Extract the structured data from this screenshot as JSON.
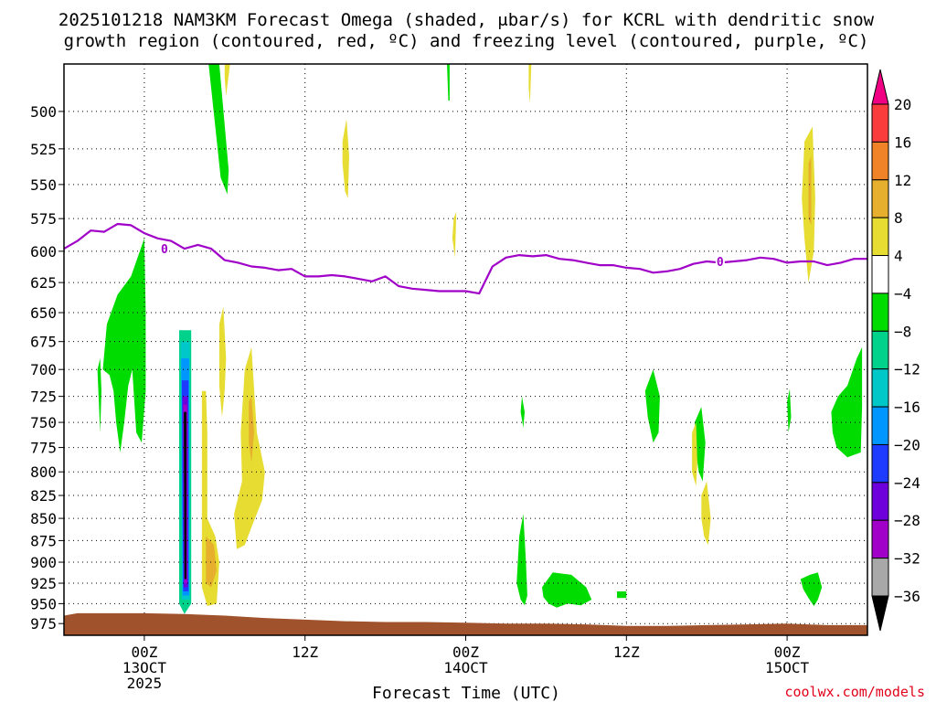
{
  "chart_data": {
    "type": "heatmap",
    "title_lines": [
      "2025101218 NAM3KM Forecast Omega (shaded, μbar/s) for KCRL with dendritic snow",
      "growth region (contoured, red, ºC) and freezing level (contoured, purple, ºC)"
    ],
    "xlabel": "Forecast Time (UTC)",
    "credit": "coolwx.com/models",
    "x_unit": "hours from 2025-10-12 18Z",
    "xlim": [
      0,
      60
    ],
    "x_ticks": [
      {
        "x": 6,
        "lines": [
          "00Z",
          "13OCT",
          "2025"
        ]
      },
      {
        "x": 18,
        "lines": [
          "12Z"
        ]
      },
      {
        "x": 30,
        "lines": [
          "00Z",
          "14OCT"
        ]
      },
      {
        "x": 42,
        "lines": [
          "12Z"
        ]
      },
      {
        "x": 54,
        "lines": [
          "00Z",
          "15OCT"
        ]
      }
    ],
    "y_ticks": [
      500,
      525,
      550,
      575,
      600,
      625,
      650,
      675,
      700,
      725,
      750,
      775,
      800,
      825,
      850,
      875,
      900,
      925,
      950,
      975
    ],
    "ylim": [
      470,
      990
    ],
    "y_scale": "log",
    "grid": true,
    "colorbar": {
      "levels": [
        -36,
        -32,
        -28,
        -24,
        -20,
        -16,
        -12,
        -8,
        -4,
        4,
        8,
        12,
        16,
        20
      ],
      "colors": [
        "#000000",
        "#a8a8a8",
        "#a000c8",
        "#6e00dc",
        "#1e3cff",
        "#0096ff",
        "#00c8c8",
        "#00d28c",
        "#00dc00",
        "#ffffff",
        "#e6dc32",
        "#e6af2d",
        "#f08228",
        "#fa3c3c",
        "#f00082"
      ]
    },
    "freezing_level": {
      "label": "0",
      "color": "#a000c8",
      "x": [
        0,
        1,
        2,
        3,
        4,
        5,
        6,
        7,
        8,
        9,
        10,
        11,
        12,
        13,
        14,
        15,
        16,
        17,
        18,
        19,
        20,
        21,
        22,
        23,
        24,
        25,
        26,
        27,
        28,
        29,
        30,
        31,
        32,
        33,
        34,
        35,
        36,
        37,
        38,
        39,
        40,
        41,
        42,
        43,
        44,
        45,
        46,
        47,
        48,
        49,
        50,
        51,
        52,
        53,
        54,
        55,
        56,
        57,
        58,
        59,
        60
      ],
      "y": [
        598,
        592,
        584,
        585,
        579,
        580,
        586,
        590,
        592,
        598,
        595,
        598,
        607,
        609,
        612,
        613,
        615,
        614,
        620,
        620,
        619,
        620,
        622,
        624,
        620,
        628,
        630,
        631,
        632,
        632,
        632,
        634,
        612,
        605,
        603,
        604,
        603,
        606,
        607,
        609,
        611,
        611,
        613,
        614,
        617,
        616,
        614,
        610,
        608,
        609,
        608,
        607,
        605,
        606,
        609,
        608,
        608,
        611,
        609,
        606,
        606
      ]
    },
    "omega_regions": [
      {
        "level": -4,
        "pts": [
          [
            2.9,
            700
          ],
          [
            3.2,
            660
          ],
          [
            4.0,
            635
          ],
          [
            5.0,
            620
          ],
          [
            6.0,
            590
          ],
          [
            6.1,
            650
          ],
          [
            6.1,
            720
          ],
          [
            5.8,
            770
          ],
          [
            5.4,
            760
          ],
          [
            5.1,
            700
          ],
          [
            4.8,
            715
          ],
          [
            4.5,
            750
          ],
          [
            4.2,
            780
          ],
          [
            3.9,
            750
          ],
          [
            3.7,
            720
          ],
          [
            3.4,
            705
          ]
        ]
      },
      {
        "level": -4,
        "pts": [
          [
            2.5,
            700
          ],
          [
            2.7,
            690
          ],
          [
            2.8,
            720
          ],
          [
            2.7,
            760
          ],
          [
            2.6,
            730
          ]
        ]
      },
      {
        "level": -4,
        "pts": [
          [
            10.8,
            470
          ],
          [
            11.6,
            470
          ],
          [
            12.3,
            540
          ],
          [
            12.2,
            557
          ],
          [
            11.7,
            545
          ],
          [
            11.3,
            510
          ]
        ]
      },
      {
        "level": -4,
        "pts": [
          [
            28.6,
            470
          ],
          [
            28.8,
            470
          ],
          [
            28.8,
            493
          ],
          [
            28.7,
            493
          ]
        ]
      },
      {
        "level": -4,
        "pts": [
          [
            34.2,
            725
          ],
          [
            34.4,
            740
          ],
          [
            34.3,
            755
          ],
          [
            34.1,
            740
          ]
        ]
      },
      {
        "level": -4,
        "pts": [
          [
            34.0,
            870
          ],
          [
            34.3,
            845
          ],
          [
            34.5,
            900
          ],
          [
            34.6,
            940
          ],
          [
            34.4,
            952
          ],
          [
            34.1,
            945
          ],
          [
            33.8,
            925
          ]
        ]
      },
      {
        "level": -4,
        "pts": [
          [
            35.7,
            930
          ],
          [
            36.5,
            912
          ],
          [
            37.9,
            915
          ],
          [
            39.0,
            930
          ],
          [
            39.4,
            945
          ],
          [
            38.6,
            952
          ],
          [
            37.6,
            950
          ],
          [
            36.8,
            955
          ],
          [
            36.2,
            950
          ],
          [
            35.8,
            942
          ]
        ]
      },
      {
        "level": -4,
        "pts": [
          [
            41.3,
            935
          ],
          [
            42.0,
            935
          ],
          [
            42.0,
            943
          ],
          [
            41.3,
            943
          ]
        ]
      },
      {
        "level": -4,
        "pts": [
          [
            43.4,
            720
          ],
          [
            44.0,
            700
          ],
          [
            44.5,
            725
          ],
          [
            44.4,
            760
          ],
          [
            44.0,
            770
          ],
          [
            43.6,
            745
          ]
        ]
      },
      {
        "level": -4,
        "pts": [
          [
            47.1,
            750
          ],
          [
            47.6,
            735
          ],
          [
            47.9,
            770
          ],
          [
            47.7,
            810
          ],
          [
            47.4,
            800
          ],
          [
            47.2,
            780
          ]
        ]
      },
      {
        "level": -4,
        "pts": [
          [
            54.0,
            730
          ],
          [
            54.2,
            718
          ],
          [
            54.3,
            745
          ],
          [
            54.1,
            760
          ]
        ]
      },
      {
        "level": -4,
        "pts": [
          [
            57.3,
            740
          ],
          [
            57.8,
            725
          ],
          [
            58.5,
            715
          ],
          [
            59.2,
            690
          ],
          [
            59.6,
            680
          ],
          [
            59.6,
            735
          ],
          [
            59.5,
            780
          ],
          [
            58.5,
            785
          ],
          [
            57.7,
            775
          ],
          [
            57.4,
            760
          ]
        ]
      },
      {
        "level": -4,
        "pts": [
          [
            55.0,
            920
          ],
          [
            55.7,
            915
          ],
          [
            56.3,
            912
          ],
          [
            56.6,
            930
          ],
          [
            56.3,
            945
          ],
          [
            56.0,
            953
          ],
          [
            55.6,
            943
          ],
          [
            55.2,
            932
          ]
        ]
      },
      {
        "level": 4,
        "pts": [
          [
            12.0,
            470
          ],
          [
            12.4,
            470
          ],
          [
            12.1,
            490
          ],
          [
            12.0,
            478
          ]
        ]
      },
      {
        "level": 4,
        "pts": [
          [
            20.8,
            520
          ],
          [
            21.1,
            505
          ],
          [
            21.3,
            530
          ],
          [
            21.2,
            560
          ],
          [
            21.0,
            555
          ],
          [
            20.8,
            535
          ]
        ]
      },
      {
        "level": 4,
        "pts": [
          [
            29.1,
            575
          ],
          [
            29.3,
            570
          ],
          [
            29.2,
            605
          ],
          [
            29.0,
            590
          ]
        ]
      },
      {
        "level": 4,
        "pts": [
          [
            34.7,
            470
          ],
          [
            34.9,
            470
          ],
          [
            34.8,
            495
          ],
          [
            34.7,
            485
          ]
        ]
      },
      {
        "level": 4,
        "pts": [
          [
            11.6,
            660
          ],
          [
            11.9,
            645
          ],
          [
            12.1,
            690
          ],
          [
            12.0,
            720
          ],
          [
            11.8,
            745
          ],
          [
            11.6,
            715
          ]
        ]
      },
      {
        "level": 4,
        "pts": [
          [
            10.3,
            720
          ],
          [
            10.6,
            720
          ],
          [
            10.7,
            760
          ],
          [
            10.7,
            850
          ],
          [
            11.3,
            870
          ],
          [
            11.6,
            900
          ],
          [
            11.4,
            950
          ],
          [
            10.7,
            953
          ],
          [
            10.3,
            930
          ]
        ]
      },
      {
        "level": 4,
        "pts": [
          [
            13.5,
            700
          ],
          [
            14.0,
            680
          ],
          [
            14.4,
            760
          ],
          [
            15.0,
            800
          ],
          [
            14.8,
            830
          ],
          [
            14.0,
            860
          ],
          [
            13.5,
            880
          ],
          [
            12.9,
            885
          ],
          [
            12.7,
            845
          ],
          [
            13.3,
            810
          ],
          [
            13.2,
            760
          ]
        ]
      },
      {
        "level": 4,
        "pts": [
          [
            46.9,
            760
          ],
          [
            47.2,
            750
          ],
          [
            47.3,
            790
          ],
          [
            47.2,
            815
          ],
          [
            46.9,
            800
          ]
        ]
      },
      {
        "level": 4,
        "pts": [
          [
            47.6,
            825
          ],
          [
            48.0,
            810
          ],
          [
            48.3,
            850
          ],
          [
            48.1,
            880
          ],
          [
            47.8,
            870
          ],
          [
            47.6,
            850
          ]
        ]
      },
      {
        "level": 4,
        "pts": [
          [
            55.3,
            520
          ],
          [
            55.9,
            510
          ],
          [
            56.1,
            560
          ],
          [
            56.0,
            600
          ],
          [
            55.6,
            625
          ],
          [
            55.3,
            590
          ],
          [
            55.1,
            560
          ]
        ]
      },
      {
        "level": 8,
        "pts": [
          [
            13.8,
            730
          ],
          [
            14.0,
            725
          ],
          [
            14.2,
            760
          ],
          [
            14.0,
            790
          ],
          [
            13.8,
            770
          ]
        ]
      },
      {
        "level": 8,
        "pts": [
          [
            10.6,
            870
          ],
          [
            11.2,
            880
          ],
          [
            11.4,
            910
          ],
          [
            11.0,
            930
          ],
          [
            10.6,
            925
          ]
        ]
      },
      {
        "level": 8,
        "pts": [
          [
            55.6,
            535
          ],
          [
            55.8,
            530
          ],
          [
            55.8,
            580
          ],
          [
            55.6,
            575
          ]
        ]
      },
      {
        "level": -8,
        "pts": [
          [
            8.6,
            665
          ],
          [
            9.5,
            665
          ],
          [
            9.5,
            950
          ],
          [
            9.0,
            963
          ],
          [
            8.6,
            950
          ]
        ]
      },
      {
        "level": -12,
        "pts": [
          [
            8.7,
            675
          ],
          [
            9.4,
            675
          ],
          [
            9.4,
            945
          ],
          [
            8.8,
            945
          ]
        ]
      },
      {
        "level": -16,
        "pts": [
          [
            8.75,
            690
          ],
          [
            9.35,
            690
          ],
          [
            9.35,
            940
          ],
          [
            8.85,
            940
          ]
        ]
      },
      {
        "level": -20,
        "pts": [
          [
            8.8,
            710
          ],
          [
            9.3,
            710
          ],
          [
            9.3,
            935
          ],
          [
            8.9,
            935
          ]
        ]
      },
      {
        "level": -24,
        "pts": [
          [
            8.85,
            725
          ],
          [
            9.25,
            725
          ],
          [
            9.25,
            930
          ],
          [
            8.95,
            930
          ]
        ]
      },
      {
        "level": -28,
        "pts": [
          [
            8.9,
            733
          ],
          [
            9.2,
            733
          ],
          [
            9.2,
            925
          ],
          [
            9.0,
            925
          ]
        ]
      },
      {
        "level": -36,
        "pts": [
          [
            8.95,
            740
          ],
          [
            9.15,
            740
          ],
          [
            9.15,
            920
          ],
          [
            9.0,
            920
          ]
        ]
      }
    ],
    "terrain": {
      "color": "#a0522d",
      "x": [
        0,
        1,
        2,
        6,
        9,
        12,
        15,
        18,
        21,
        24,
        27,
        30,
        33,
        36,
        39,
        42,
        45,
        48,
        51,
        54,
        57,
        60
      ],
      "surface": [
        965,
        962,
        962,
        962,
        963,
        965,
        968,
        970,
        972,
        973,
        973,
        974,
        975,
        975,
        976,
        978,
        978,
        977,
        976,
        975,
        977,
        977
      ]
    }
  }
}
